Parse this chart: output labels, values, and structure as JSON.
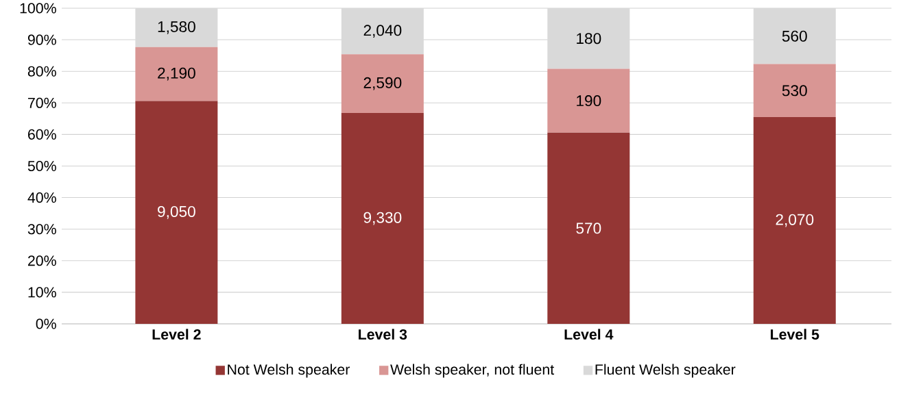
{
  "chart_data": {
    "type": "bar",
    "stacked": true,
    "categories": [
      "Level 2",
      "Level 3",
      "Level 4",
      "Level 5"
    ],
    "series": [
      {
        "name": "Not Welsh speaker",
        "color": "#943634",
        "values": [
          70.6,
          66.8,
          60.6,
          65.5
        ]
      },
      {
        "name": "Welsh speaker, not fluent",
        "color": "#d99694",
        "values": [
          17.1,
          18.6,
          20.2,
          16.8
        ]
      },
      {
        "name": "Fluent Welsh speaker",
        "color": "#d9d9d9",
        "values": [
          12.3,
          14.6,
          19.2,
          17.7
        ]
      }
    ],
    "annotations": [
      "9,050",
      "9,330",
      "570",
      "2,070",
      "2,190",
      "2,590",
      "190",
      "530",
      "1,580",
      "2,040",
      "180",
      "560"
    ],
    "ylim": [
      0,
      100
    ],
    "yticks": [
      {
        "value": 0,
        "label": "0%"
      },
      {
        "value": 10,
        "label": "10%"
      },
      {
        "value": 20,
        "label": "20%"
      },
      {
        "value": 30,
        "label": "30%"
      },
      {
        "value": 40,
        "label": "40%"
      },
      {
        "value": 50,
        "label": "50%"
      },
      {
        "value": 60,
        "label": "60%"
      },
      {
        "value": 70,
        "label": "70%"
      },
      {
        "value": 80,
        "label": "80%"
      },
      {
        "value": 90,
        "label": "90%"
      },
      {
        "value": 100,
        "label": "100%"
      }
    ],
    "grid": "y",
    "legend": "bottom"
  }
}
